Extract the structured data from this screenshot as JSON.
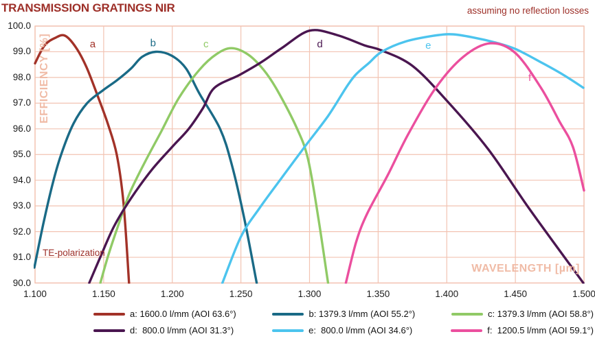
{
  "header": {
    "title": "TRANSMISSION GRATINGS NIR",
    "annotation": "assuming no reflection losses"
  },
  "colors": {
    "red": "#9d2f28",
    "grid": "#f2c3b2",
    "salmon": "#f0bba6",
    "ink": "#1c1c1c"
  },
  "chart_data": {
    "type": "line",
    "title": "TRANSMISSION GRATINGS NIR",
    "subtitle": "assuming no reflection losses",
    "xlabel": "WAVELENGTH [µm]",
    "ylabel": "EFFICIENCY [%]",
    "note": "TE-polarization",
    "grid": true,
    "xlim": [
      1.1,
      1.5
    ],
    "ylim": [
      90.0,
      100.0
    ],
    "x_ticks": [
      "1.100",
      "1.150",
      "1.200",
      "1.250",
      "1.300",
      "1.350",
      "1.400",
      "1.450",
      "1.500"
    ],
    "y_ticks": [
      "100.0",
      "99.0",
      "98.0",
      "97.0",
      "96.0",
      "95.0",
      "94.0",
      "93.0",
      "92.0",
      "91.0",
      "90.0"
    ],
    "legend_position": "bottom",
    "series": [
      {
        "letter": "a",
        "name": "a: 1600.0 l/mm (AOI 63.6°)",
        "color": "#a23228",
        "label_at": [
          1.142,
          99.3
        ],
        "points": [
          [
            1.1,
            98.55
          ],
          [
            1.107,
            99.25
          ],
          [
            1.115,
            99.55
          ],
          [
            1.122,
            99.62
          ],
          [
            1.13,
            99.15
          ],
          [
            1.1375,
            98.4
          ],
          [
            1.1455,
            97.3
          ],
          [
            1.153,
            96.2
          ],
          [
            1.1595,
            95.0
          ],
          [
            1.1645,
            93.1
          ],
          [
            1.1685,
            90.0
          ]
        ]
      },
      {
        "letter": "b",
        "name": "b: 1379.3 l/mm (AOI 55.2°)",
        "color": "#1a6a86",
        "label_at": [
          1.186,
          99.35
        ],
        "points": [
          [
            1.0995,
            90.6
          ],
          [
            1.106,
            92.3
          ],
          [
            1.113,
            93.9
          ],
          [
            1.119,
            95.0
          ],
          [
            1.128,
            96.2
          ],
          [
            1.138,
            97.0
          ],
          [
            1.1495,
            97.5
          ],
          [
            1.16,
            97.9
          ],
          [
            1.17,
            98.35
          ],
          [
            1.178,
            98.8
          ],
          [
            1.188,
            99.0
          ],
          [
            1.1995,
            98.85
          ],
          [
            1.21,
            98.35
          ],
          [
            1.22,
            97.35
          ],
          [
            1.2348,
            96.0
          ],
          [
            1.2434,
            94.6
          ],
          [
            1.2525,
            92.5
          ],
          [
            1.2615,
            90.0
          ]
        ]
      },
      {
        "letter": "c",
        "name": "c: 1379.3 l/mm (AOI 58.8°)",
        "color": "#90ca66",
        "label_at": [
          1.2245,
          99.3
        ],
        "points": [
          [
            1.1476,
            90.0
          ],
          [
            1.1535,
            91.1
          ],
          [
            1.161,
            92.3
          ],
          [
            1.169,
            93.5
          ],
          [
            1.18,
            94.7
          ],
          [
            1.192,
            95.9
          ],
          [
            1.2048,
            97.2
          ],
          [
            1.2198,
            98.3
          ],
          [
            1.232,
            98.9
          ],
          [
            1.243,
            99.14
          ],
          [
            1.255,
            98.9
          ],
          [
            1.2665,
            98.3
          ],
          [
            1.2765,
            97.5
          ],
          [
            1.291,
            96.0
          ],
          [
            1.299,
            94.8
          ],
          [
            1.3065,
            92.5
          ],
          [
            1.3135,
            90.0
          ]
        ]
      },
      {
        "letter": "d",
        "name": "d:  800.0 l/mm (AOI 31.3°)",
        "color": "#4a1650",
        "label_at": [
          1.3075,
          99.3
        ],
        "points": [
          [
            1.1395,
            90.0
          ],
          [
            1.1475,
            91.0
          ],
          [
            1.1575,
            92.2
          ],
          [
            1.17,
            93.3
          ],
          [
            1.185,
            94.4
          ],
          [
            1.2,
            95.3
          ],
          [
            1.212,
            96.0
          ],
          [
            1.2223,
            96.8
          ],
          [
            1.2308,
            97.6
          ],
          [
            1.249,
            98.1
          ],
          [
            1.265,
            98.6
          ],
          [
            1.28,
            99.15
          ],
          [
            1.3,
            99.82
          ],
          [
            1.32,
            99.65
          ],
          [
            1.34,
            99.25
          ],
          [
            1.3526,
            99.05
          ],
          [
            1.375,
            98.45
          ],
          [
            1.4,
            97.1
          ],
          [
            1.4303,
            95.2
          ],
          [
            1.46,
            92.9
          ],
          [
            1.4995,
            90.0
          ]
        ]
      },
      {
        "letter": "e",
        "name": "e:  800.0 l/mm (AOI 34.6°)",
        "color": "#4cc4ee",
        "label_at": [
          1.3865,
          99.25
        ],
        "points": [
          [
            1.2365,
            90.0
          ],
          [
            1.25,
            91.8
          ],
          [
            1.2634,
            92.9
          ],
          [
            1.2784,
            94.0
          ],
          [
            1.2965,
            95.3
          ],
          [
            1.3135,
            96.5
          ],
          [
            1.3266,
            97.6
          ],
          [
            1.3335,
            98.1
          ],
          [
            1.343,
            98.55
          ],
          [
            1.3526,
            99.0
          ],
          [
            1.37,
            99.4
          ],
          [
            1.39,
            99.62
          ],
          [
            1.404,
            99.68
          ],
          [
            1.42,
            99.55
          ],
          [
            1.436,
            99.35
          ],
          [
            1.4504,
            99.1
          ],
          [
            1.47,
            98.55
          ],
          [
            1.485,
            98.1
          ],
          [
            1.4995,
            97.6
          ]
        ]
      },
      {
        "letter": "f",
        "name": "f:  1200.5 l/mm (AOI 59.1°)",
        "color": "#eb4f9e",
        "label_at": [
          1.4605,
          98.0
        ],
        "points": [
          [
            1.3265,
            90.0
          ],
          [
            1.334,
            91.6
          ],
          [
            1.342,
            92.7
          ],
          [
            1.357,
            94.2
          ],
          [
            1.372,
            95.8
          ],
          [
            1.392,
            97.6
          ],
          [
            1.412,
            98.8
          ],
          [
            1.4318,
            99.33
          ],
          [
            1.45,
            98.95
          ],
          [
            1.4686,
            97.6
          ],
          [
            1.482,
            96.3
          ],
          [
            1.4919,
            95.3
          ],
          [
            1.5,
            93.6
          ]
        ]
      }
    ]
  }
}
